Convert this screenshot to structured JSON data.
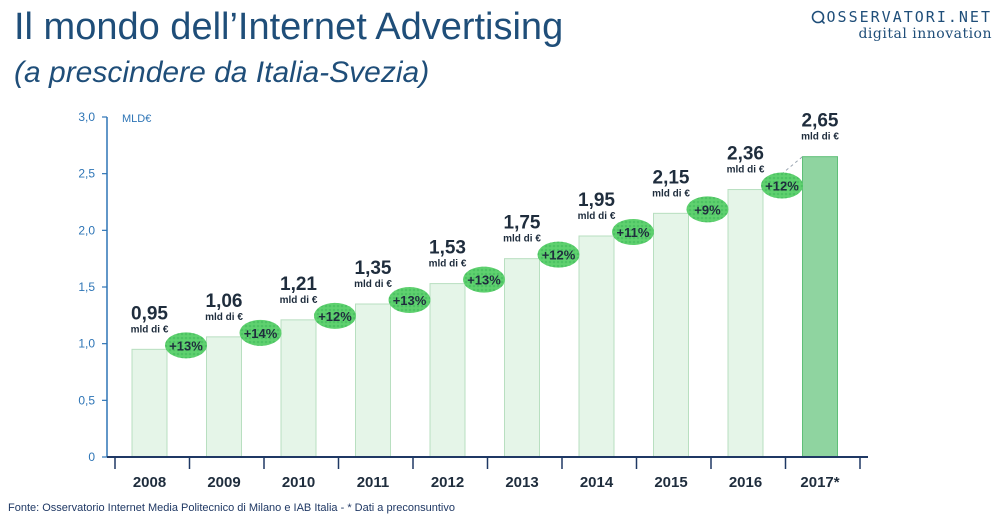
{
  "header": {
    "title": "Il mondo dell’Internet Advertising",
    "subtitle": "(a prescindere da Italia-Svezia)"
  },
  "logo": {
    "line1": "OSSERVATORI.NET",
    "line2": "digital innovation"
  },
  "source": "Fonte: Osservatorio Internet Media Politecnico di Milano e IAB Italia - * Dati a preconsuntivo",
  "chart_data": {
    "type": "bar",
    "categories": [
      "2008",
      "2009",
      "2010",
      "2011",
      "2012",
      "2013",
      "2014",
      "2015",
      "2016",
      "2017*"
    ],
    "values": [
      0.95,
      1.06,
      1.21,
      1.35,
      1.53,
      1.75,
      1.95,
      2.15,
      2.36,
      2.65
    ],
    "value_labels": [
      "0,95",
      "1,06",
      "1,21",
      "1,35",
      "1,53",
      "1,75",
      "1,95",
      "2,15",
      "2,36",
      "2,65"
    ],
    "unit_label": "mld di €",
    "growth_labels": [
      "+13%",
      "+14%",
      "+12%",
      "+13%",
      "+13%",
      "+12%",
      "+11%",
      "+9%",
      "+12%"
    ],
    "ylabel": "MLD€",
    "ylim": [
      0,
      3.0
    ],
    "yticks": [
      "0",
      "0,5",
      "1,0",
      "1,5",
      "2,0",
      "2,5",
      "3,0"
    ],
    "ytick_values": [
      0,
      0.5,
      1.0,
      1.5,
      2.0,
      2.5,
      3.0
    ],
    "grid": false,
    "colors": {
      "bar": "#e5f5e8",
      "bar_border": "#b8dfc0",
      "bar_highlight": "#8fd4a0",
      "bubble": "#5fd16f",
      "axis": "#2e75b6",
      "x_axis": "#1f3864"
    }
  }
}
